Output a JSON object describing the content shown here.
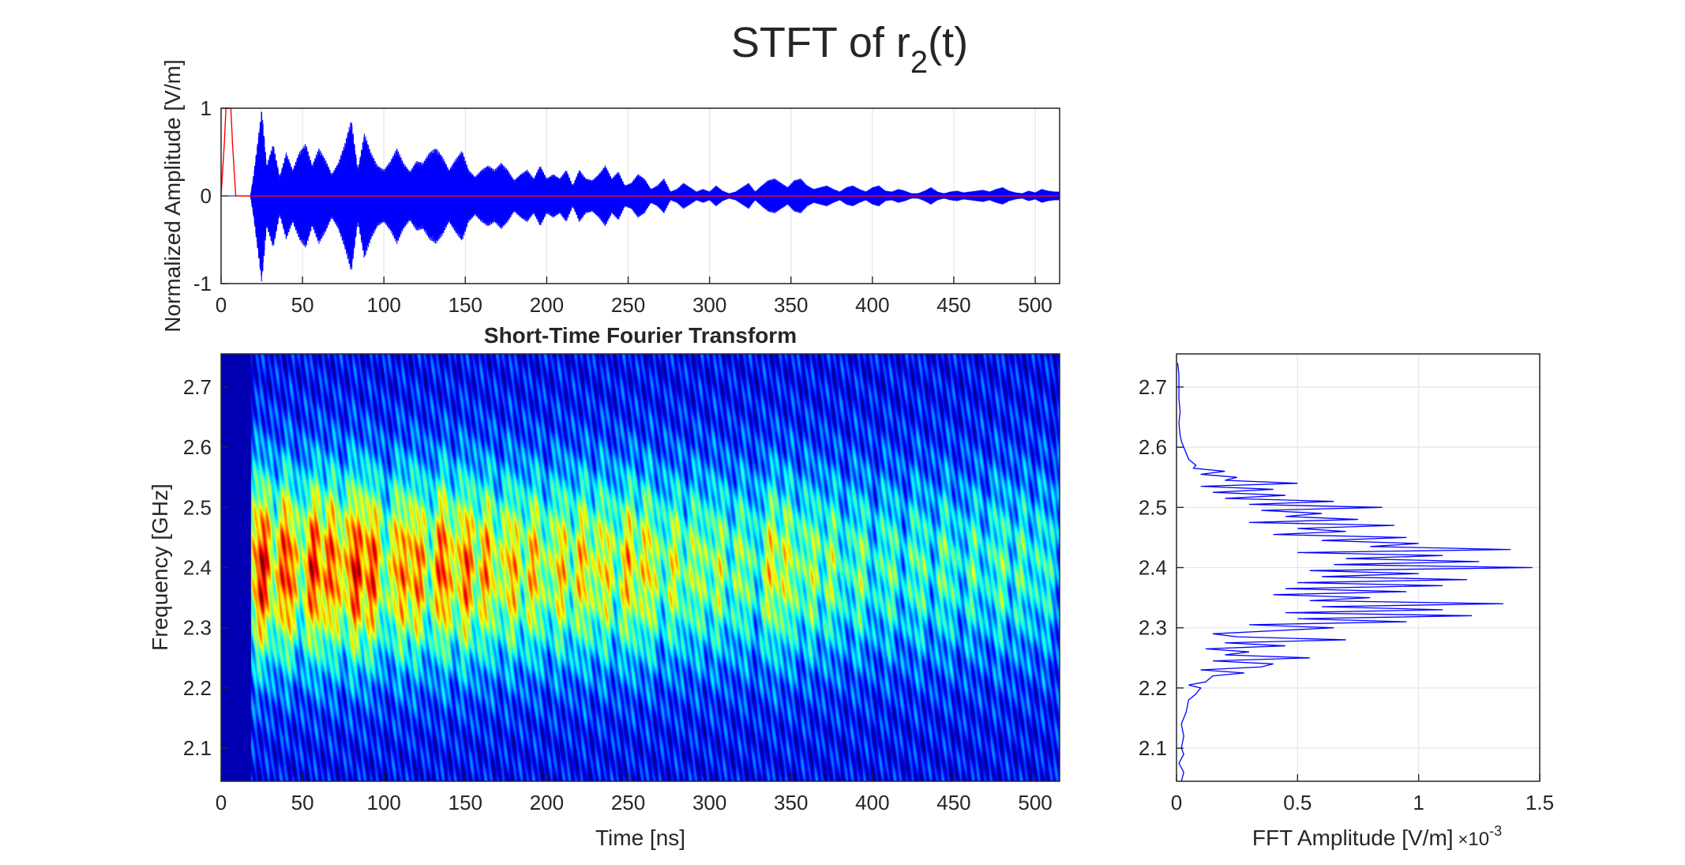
{
  "figure": {
    "title_main": "STFT of r",
    "title_sub": "2",
    "title_end": "(t)"
  },
  "chart_data": [
    {
      "id": "time-signal",
      "type": "line",
      "title": "",
      "xlabel": "",
      "ylabel": "Normalized Amplitude [V/m]",
      "xlim": [
        0,
        515
      ],
      "ylim": [
        -1,
        1
      ],
      "xticks": [
        0,
        50,
        100,
        150,
        200,
        250,
        300,
        350,
        400,
        450,
        500
      ],
      "xtick_labels": [
        "0",
        "50",
        "100",
        "150",
        "200",
        "250",
        "300",
        "350",
        "400",
        "450",
        "500"
      ],
      "yticks": [
        -1,
        0,
        1
      ],
      "ytick_labels": [
        "-1",
        "0",
        "1"
      ],
      "grid": true,
      "series": [
        {
          "color": "#ff0000",
          "x": [
            0,
            2,
            3,
            6,
            7,
            9,
            515
          ],
          "y": [
            0,
            0.6,
            1,
            1,
            0.6,
            0,
            0
          ]
        },
        {
          "color": "#0000ff",
          "envelope_x": [
            0,
            18,
            20,
            22,
            25,
            28,
            32,
            36,
            40,
            44,
            48,
            52,
            56,
            60,
            64,
            68,
            72,
            76,
            80,
            84,
            88,
            92,
            96,
            100,
            104,
            108,
            112,
            116,
            120,
            124,
            128,
            132,
            136,
            140,
            144,
            148,
            152,
            156,
            160,
            164,
            168,
            172,
            176,
            180,
            184,
            188,
            192,
            196,
            200,
            204,
            208,
            212,
            216,
            220,
            224,
            228,
            232,
            236,
            240,
            244,
            248,
            252,
            256,
            260,
            264,
            268,
            272,
            276,
            280,
            284,
            288,
            292,
            296,
            300,
            304,
            308,
            312,
            316,
            320,
            324,
            328,
            332,
            336,
            340,
            344,
            348,
            352,
            356,
            360,
            364,
            368,
            372,
            376,
            380,
            384,
            388,
            392,
            396,
            400,
            404,
            408,
            412,
            416,
            420,
            424,
            428,
            432,
            436,
            440,
            444,
            448,
            452,
            456,
            460,
            464,
            468,
            472,
            476,
            480,
            484,
            488,
            492,
            496,
            500,
            504,
            508,
            512,
            515
          ],
          "envelope_y": [
            0,
            0,
            0.25,
            0.55,
            1.0,
            0.35,
            0.6,
            0.22,
            0.5,
            0.3,
            0.5,
            0.6,
            0.35,
            0.55,
            0.42,
            0.25,
            0.38,
            0.6,
            0.88,
            0.3,
            0.72,
            0.5,
            0.35,
            0.3,
            0.4,
            0.55,
            0.38,
            0.28,
            0.4,
            0.38,
            0.5,
            0.55,
            0.45,
            0.3,
            0.42,
            0.52,
            0.3,
            0.22,
            0.3,
            0.35,
            0.3,
            0.38,
            0.3,
            0.18,
            0.25,
            0.3,
            0.2,
            0.35,
            0.2,
            0.25,
            0.2,
            0.3,
            0.12,
            0.3,
            0.2,
            0.18,
            0.25,
            0.35,
            0.2,
            0.28,
            0.12,
            0.15,
            0.25,
            0.2,
            0.08,
            0.12,
            0.2,
            0.05,
            0.08,
            0.15,
            0.1,
            0.05,
            0.08,
            0.05,
            0.12,
            0.06,
            0.03,
            0.05,
            0.1,
            0.15,
            0.05,
            0.12,
            0.18,
            0.2,
            0.15,
            0.1,
            0.18,
            0.2,
            0.12,
            0.08,
            0.1,
            0.12,
            0.08,
            0.05,
            0.1,
            0.12,
            0.08,
            0.05,
            0.1,
            0.12,
            0.06,
            0.05,
            0.08,
            0.06,
            0.03,
            0.03,
            0.06,
            0.1,
            0.05,
            0.03,
            0.05,
            0.06,
            0.04,
            0.05,
            0.06,
            0.07,
            0.05,
            0.08,
            0.1,
            0.06,
            0.04,
            0.03,
            0.06,
            0.04,
            0.08,
            0.06,
            0.05,
            0.05
          ]
        }
      ]
    },
    {
      "id": "stft",
      "type": "heatmap",
      "title": "Short-Time Fourier Transform",
      "xlabel": "Time [ns]",
      "ylabel": "Frequency [GHz]",
      "xlim": [
        0,
        515
      ],
      "ylim": [
        2.045,
        2.755
      ],
      "xticks": [
        0,
        50,
        100,
        150,
        200,
        250,
        300,
        350,
        400,
        450,
        500
      ],
      "xtick_labels": [
        "0",
        "50",
        "100",
        "150",
        "200",
        "250",
        "300",
        "350",
        "400",
        "450",
        "500"
      ],
      "yticks": [
        2.1,
        2.2,
        2.3,
        2.4,
        2.5,
        2.6,
        2.7
      ],
      "ytick_labels": [
        "2.1",
        "2.2",
        "2.3",
        "2.4",
        "2.5",
        "2.6",
        "2.7"
      ],
      "colormap": "jet",
      "data_start_x": 18,
      "center_freq": 2.4,
      "peak_times": [
        25,
        40,
        57,
        68,
        82,
        92,
        110,
        120,
        136,
        150,
        163,
        178,
        192,
        208,
        222,
        235,
        250,
        262,
        278,
        292,
        305,
        320,
        338,
        348,
        362,
        375,
        392,
        410,
        428,
        445,
        462,
        478,
        492,
        505
      ],
      "peak_levels": [
        0.95,
        0.9,
        0.92,
        0.85,
        1.0,
        0.9,
        0.8,
        0.82,
        0.95,
        0.9,
        0.78,
        0.75,
        0.72,
        0.7,
        0.75,
        0.7,
        0.8,
        0.75,
        0.6,
        0.55,
        0.55,
        0.5,
        0.78,
        0.7,
        0.6,
        0.55,
        0.5,
        0.45,
        0.48,
        0.5,
        0.45,
        0.55,
        0.5,
        0.45
      ]
    },
    {
      "id": "fft-spectrum",
      "type": "line",
      "title": "",
      "xlabel": "FFT Amplitude [V/m]",
      "ylabel": "",
      "x_exponent_base": "10",
      "x_exponent": "-3",
      "xlim": [
        0,
        1.5
      ],
      "ylim": [
        2.045,
        2.755
      ],
      "xticks": [
        0,
        0.5,
        1,
        1.5
      ],
      "xtick_labels": [
        "0",
        "0.5",
        "1",
        "1.5"
      ],
      "yticks": [
        2.1,
        2.2,
        2.3,
        2.4,
        2.5,
        2.6,
        2.7
      ],
      "ytick_labels": [
        "2.1",
        "2.2",
        "2.3",
        "2.4",
        "2.5",
        "2.6",
        "2.7"
      ],
      "grid": true,
      "series": [
        {
          "color": "#0000ff",
          "freq": [
            2.045,
            2.06,
            2.075,
            2.09,
            2.1,
            2.12,
            2.14,
            2.16,
            2.18,
            2.19,
            2.2,
            2.205,
            2.21,
            2.22,
            2.225,
            2.23,
            2.235,
            2.24,
            2.245,
            2.25,
            2.255,
            2.26,
            2.265,
            2.27,
            2.275,
            2.28,
            2.285,
            2.29,
            2.295,
            2.3,
            2.305,
            2.31,
            2.315,
            2.32,
            2.325,
            2.33,
            2.335,
            2.34,
            2.345,
            2.35,
            2.355,
            2.36,
            2.365,
            2.37,
            2.375,
            2.38,
            2.385,
            2.39,
            2.395,
            2.4,
            2.405,
            2.41,
            2.415,
            2.42,
            2.425,
            2.43,
            2.435,
            2.44,
            2.445,
            2.45,
            2.455,
            2.46,
            2.465,
            2.47,
            2.475,
            2.48,
            2.485,
            2.49,
            2.495,
            2.5,
            2.505,
            2.51,
            2.515,
            2.52,
            2.525,
            2.53,
            2.535,
            2.54,
            2.545,
            2.55,
            2.555,
            2.56,
            2.565,
            2.57,
            2.58,
            2.59,
            2.6,
            2.61,
            2.62,
            2.64,
            2.66,
            2.68,
            2.7,
            2.72,
            2.74,
            2.755
          ],
          "amp": [
            0.02,
            0.03,
            0.01,
            0.03,
            0.02,
            0.03,
            0.02,
            0.04,
            0.05,
            0.08,
            0.1,
            0.05,
            0.12,
            0.15,
            0.28,
            0.1,
            0.35,
            0.4,
            0.15,
            0.55,
            0.2,
            0.3,
            0.12,
            0.45,
            0.2,
            0.7,
            0.25,
            0.15,
            0.4,
            0.65,
            0.3,
            0.95,
            0.5,
            1.22,
            0.45,
            1.1,
            0.6,
            1.35,
            0.55,
            0.8,
            0.4,
            0.95,
            0.45,
            1.1,
            0.5,
            1.2,
            0.6,
            1.0,
            0.55,
            1.47,
            0.65,
            1.25,
            0.7,
            1.1,
            0.5,
            1.38,
            0.8,
            1.0,
            0.6,
            0.95,
            0.4,
            0.7,
            0.5,
            0.9,
            0.3,
            0.75,
            0.45,
            0.6,
            0.35,
            0.85,
            0.3,
            0.65,
            0.2,
            0.45,
            0.15,
            0.4,
            0.1,
            0.5,
            0.2,
            0.25,
            0.1,
            0.2,
            0.07,
            0.08,
            0.05,
            0.04,
            0.03,
            0.02,
            0.015,
            0.01,
            0.015,
            0.01,
            0.01,
            0.01,
            0.005
          ]
        }
      ]
    }
  ]
}
